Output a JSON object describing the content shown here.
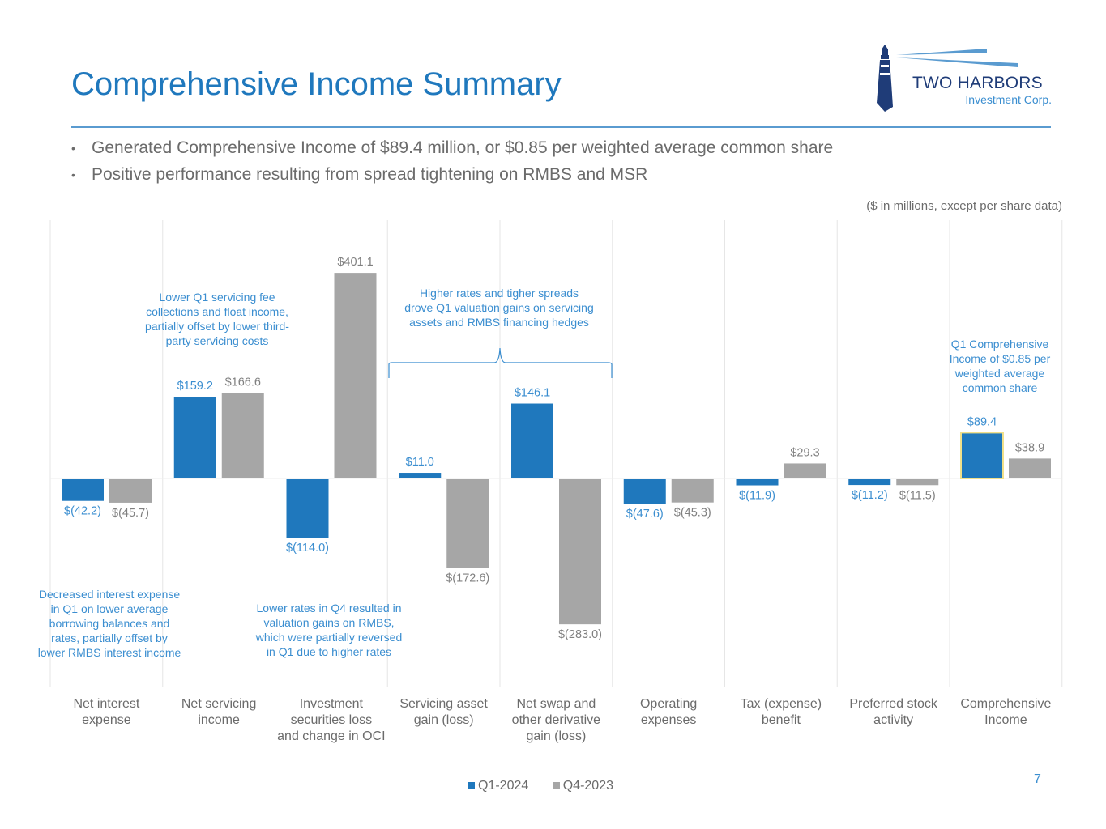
{
  "title": "Comprehensive Income Summary",
  "bullets": [
    "Generated Comprehensive Income of $89.4 million, or $0.85 per weighted average common share",
    "Positive performance resulting from spread tightening on RMBS and MSR"
  ],
  "units_note": "($ in millions, except per share data)",
  "page_number": "7",
  "logo": {
    "brand": "TWO HARBORS",
    "sub": "Investment Corp."
  },
  "colors": {
    "q1": "#1f78bd",
    "q4": "#a6a6a6",
    "accent": "#3b8ed0",
    "highlight": "#f0e08a"
  },
  "chart_data": {
    "type": "bar",
    "categories": [
      [
        "Net interest",
        "expense"
      ],
      [
        "Net servicing",
        "income"
      ],
      [
        "Investment",
        "securities loss",
        "and change in OCI"
      ],
      [
        "Servicing asset",
        "gain (loss)"
      ],
      [
        "Net swap and",
        "other derivative",
        "gain (loss)"
      ],
      [
        "Operating",
        "expenses"
      ],
      [
        "Tax (expense)",
        "benefit"
      ],
      [
        "Preferred stock",
        "activity"
      ],
      [
        "Comprehensive",
        "Income"
      ]
    ],
    "series": [
      {
        "name": "Q1-2024",
        "values": [
          -42.2,
          159.2,
          -114.0,
          11.0,
          146.1,
          -47.6,
          -11.9,
          -11.2,
          89.4
        ],
        "labels": [
          "$(42.2)",
          "$159.2",
          "$(114.0)",
          "$11.0",
          "$146.1",
          "$(47.6)",
          "$(11.9)",
          "$(11.2)",
          "$89.4"
        ]
      },
      {
        "name": "Q4-2023",
        "values": [
          -45.7,
          166.6,
          401.1,
          -172.6,
          -283.0,
          -45.3,
          29.3,
          -11.5,
          38.9
        ],
        "labels": [
          "$(45.7)",
          "$166.6",
          "$401.1",
          "$(172.6)",
          "$(283.0)",
          "$(45.3)",
          "$29.3",
          "$(11.5)",
          "$38.9"
        ]
      }
    ],
    "highlighted_bar": {
      "category_index": 8,
      "series_index": 0
    },
    "annotations": [
      {
        "lines": [
          "Lower Q1 servicing fee",
          "collections and float income,",
          "partially offset by lower third-",
          "party servicing costs"
        ]
      },
      {
        "lines": [
          "Higher rates and tigher spreads",
          "drove Q1 valuation gains on servicing",
          "assets and RMBS financing hedges"
        ]
      },
      {
        "lines": [
          "Q1 Comprehensive",
          "Income of $0.85 per",
          "weighted average",
          "common share"
        ]
      },
      {
        "lines": [
          "Decreased interest expense",
          "in Q1 on lower average",
          "borrowing balances and",
          "rates, partially offset by",
          "lower RMBS interest income"
        ]
      },
      {
        "lines": [
          "Lower rates in Q4 resulted in",
          "valuation gains on RMBS,",
          "which were partially reversed",
          "in Q1 due to higher rates"
        ]
      }
    ],
    "legend_position": "bottom",
    "grid": false
  }
}
